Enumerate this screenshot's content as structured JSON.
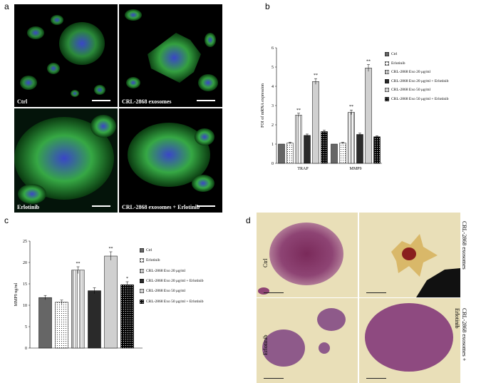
{
  "panels": {
    "a": {
      "letter": "a",
      "tiles": [
        {
          "label": "Ctrl"
        },
        {
          "label": "CRL-2868 exosomes"
        },
        {
          "label": "Erlotinib"
        },
        {
          "label": "CRL-2868 exosomes + Erlotinib"
        }
      ]
    },
    "b": {
      "letter": "b"
    },
    "c": {
      "letter": "c"
    },
    "d": {
      "letter": "d",
      "labels": [
        "Ctrl",
        "CRL-2868 exosomes",
        "Erlotinib",
        "CRL-2868 exosomes + Erlotinib"
      ]
    }
  },
  "chart_data": [
    {
      "type": "bar",
      "panel": "b",
      "ylabel": "FOI of mRNA expression",
      "ylim": [
        0,
        6
      ],
      "yticks": [
        "0",
        "1",
        "2",
        "3",
        "4",
        "5",
        "6"
      ],
      "categories": [
        "TRAP",
        "MMP9"
      ],
      "series": [
        {
          "name": "Ctrl",
          "values": [
            1.0,
            1.0
          ],
          "errors": [
            0.0,
            0.0
          ],
          "fill": "#666666",
          "pattern": "solid",
          "sig": [
            "",
            ""
          ]
        },
        {
          "name": "Erlotinib",
          "values": [
            1.05,
            1.05
          ],
          "errors": [
            0.05,
            0.05
          ],
          "fill": "#ffffff",
          "pattern": "dots",
          "sig": [
            "",
            ""
          ]
        },
        {
          "name": "CRL-2868 Exo 20 μg/ml",
          "values": [
            2.5,
            2.65
          ],
          "errors": [
            0.1,
            0.12
          ],
          "fill": "#ffffff",
          "pattern": "vlines",
          "sig": [
            "**",
            "**"
          ]
        },
        {
          "name": "CRL-2868 Exo 20 μg/ml + Erlotinib",
          "values": [
            1.45,
            1.5
          ],
          "errors": [
            0.07,
            0.07
          ],
          "fill": "#2a2a2a",
          "pattern": "solid",
          "sig": [
            "",
            ""
          ]
        },
        {
          "name": "CRL-2868 Exo 50 μg/ml",
          "values": [
            4.25,
            4.95
          ],
          "errors": [
            0.15,
            0.18
          ],
          "fill": "#d0d0d0",
          "pattern": "solid",
          "sig": [
            "**",
            "**"
          ]
        },
        {
          "name": "CRL-2868 Exo 50 μg/ml + Erlotinib",
          "values": [
            1.65,
            1.38
          ],
          "errors": [
            0.07,
            0.05
          ],
          "fill": "#000000",
          "pattern": "whitedots",
          "sig": [
            "",
            ""
          ]
        }
      ]
    },
    {
      "type": "bar",
      "panel": "c",
      "ylabel": "MMP9 ng/ml",
      "ylim": [
        0,
        25
      ],
      "yticks": [
        "0",
        "5",
        "10",
        "15",
        "20",
        "25"
      ],
      "categories": [
        ""
      ],
      "series": [
        {
          "name": "Ctrl",
          "values": [
            11.8
          ],
          "errors": [
            0.5
          ],
          "fill": "#666666",
          "pattern": "solid",
          "sig": [
            ""
          ]
        },
        {
          "name": "Erlotinib",
          "values": [
            10.7
          ],
          "errors": [
            0.5
          ],
          "fill": "#ffffff",
          "pattern": "dots",
          "sig": [
            ""
          ]
        },
        {
          "name": "CRL-2868 Exo 20 μg/ml",
          "values": [
            18.2
          ],
          "errors": [
            0.8
          ],
          "fill": "#ffffff",
          "pattern": "vlines",
          "sig": [
            "**"
          ]
        },
        {
          "name": "CRL-2868 Exo 20 μg/ml + Erlotinib",
          "values": [
            13.4
          ],
          "errors": [
            0.7
          ],
          "fill": "#2a2a2a",
          "pattern": "solid",
          "sig": [
            ""
          ]
        },
        {
          "name": "CRL-2868 Exo 50 μg/ml",
          "values": [
            21.5
          ],
          "errors": [
            1.0
          ],
          "fill": "#d0d0d0",
          "pattern": "solid",
          "sig": [
            "**"
          ]
        },
        {
          "name": "CRL-2868 Exo 50 μg/ml + Erlotinib",
          "values": [
            14.8
          ],
          "errors": [
            0.7
          ],
          "fill": "#000000",
          "pattern": "whitedots",
          "sig": [
            "*"
          ]
        }
      ]
    }
  ]
}
